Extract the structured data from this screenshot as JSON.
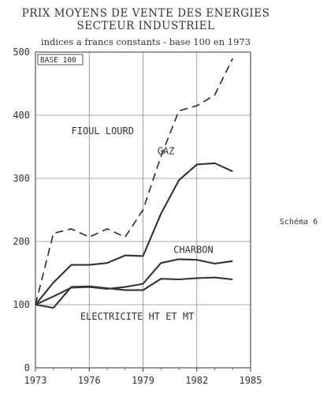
{
  "side_label": "Schéma 6",
  "chart_data": {
    "type": "line",
    "title": "PRIX MOYENS DE VENTE DES ENERGIES",
    "subtitle": "SECTEUR INDUSTRIEL",
    "note": "indices a francs constants - base 100 en 1973",
    "box_label": "BASE 100",
    "xlim": [
      1973,
      1985
    ],
    "ylim": [
      0,
      500
    ],
    "xticks": [
      "1973",
      "1976",
      "1979",
      "1982",
      "1985"
    ],
    "yticks": [
      "0",
      "100",
      "200",
      "300",
      "400",
      "500"
    ],
    "grid": true,
    "series": [
      {
        "name": "FIOUL LOURD",
        "dashed": true,
        "x": [
          1973,
          1974,
          1975,
          1976,
          1977,
          1978,
          1979,
          1980,
          1981,
          1982,
          1983,
          1984
        ],
        "values": [
          100,
          213,
          220,
          207,
          220,
          207,
          250,
          335,
          407,
          415,
          432,
          490
        ]
      },
      {
        "name": "GAZ",
        "dashed": false,
        "x": [
          1973,
          1974,
          1975,
          1976,
          1977,
          1978,
          1979,
          1980,
          1981,
          1982,
          1983,
          1984
        ],
        "values": [
          100,
          135,
          163,
          163,
          166,
          178,
          177,
          244,
          297,
          322,
          324,
          311
        ]
      },
      {
        "name": "CHARBON",
        "dashed": false,
        "x": [
          1973,
          1974,
          1975,
          1976,
          1977,
          1978,
          1979,
          1980,
          1981,
          1982,
          1983,
          1984
        ],
        "values": [
          100,
          113,
          127,
          128,
          125,
          128,
          133,
          166,
          172,
          171,
          165,
          169
        ]
      },
      {
        "name": "ELECTRICITE HT ET MT",
        "dashed": false,
        "x": [
          1973,
          1974,
          1975,
          1976,
          1977,
          1978,
          1979,
          1980,
          1981,
          1982,
          1983,
          1984
        ],
        "values": [
          100,
          95,
          128,
          129,
          126,
          123,
          123,
          141,
          140,
          142,
          143,
          140
        ]
      }
    ]
  }
}
